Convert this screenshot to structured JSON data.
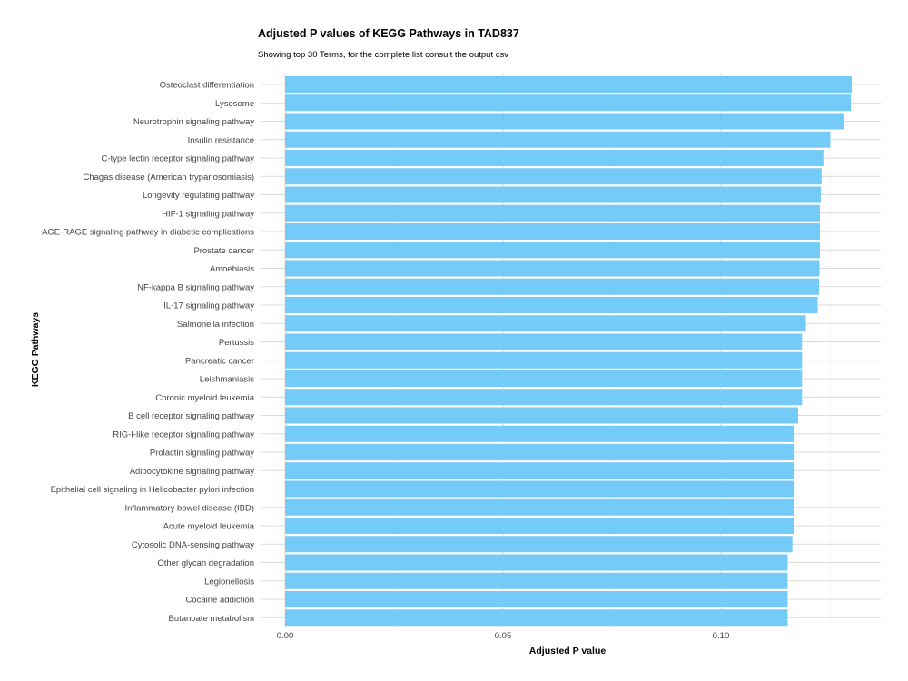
{
  "chart_data": {
    "type": "bar",
    "orientation": "horizontal",
    "title": "Adjusted P values of KEGG Pathways in TAD837",
    "subtitle": "Showing top 30 Terms, for the complete list consult the output csv",
    "xlabel": "Adjusted P value",
    "ylabel": "KEGG Pathways",
    "xlim": [
      0,
      0.137
    ],
    "xticks": [
      0.0,
      0.05,
      0.1
    ],
    "xtick_labels": [
      "0.00",
      "0.05",
      "0.10"
    ],
    "grid": true,
    "bar_color": "#74cbf8",
    "categories": [
      "Osteoclast differentiation",
      "Lysosome",
      "Neurotrophin signaling pathway",
      "Insulin resistance",
      "C-type lectin receptor signaling pathway",
      "Chagas disease (American trypanosomiasis)",
      "Longevity regulating pathway",
      "HIF-1 signaling pathway",
      "AGE-RAGE signaling pathway in diabetic complications",
      "Prostate cancer",
      "Amoebiasis",
      "NF-kappa B signaling pathway",
      "IL-17 signaling pathway",
      "Salmonella infection",
      "Pertussis",
      "Pancreatic cancer",
      "Leishmaniasis",
      "Chronic myeloid leukemia",
      "B cell receptor signaling pathway",
      "RIG-I-like receptor signaling pathway",
      "Prolactin signaling pathway",
      "Adipocytokine signaling pathway",
      "Epithelial cell signaling in Helicobacter pylori infection",
      "Inflammatory bowel disease (IBD)",
      "Acute myeloid leukemia",
      "Cytosolic DNA-sensing pathway",
      "Other glycan degradation",
      "Legionellosis",
      "Cocaine addiction",
      "Butanoate metabolism"
    ],
    "values": [
      0.13,
      0.1298,
      0.1281,
      0.1251,
      0.1235,
      0.1231,
      0.1229,
      0.1227,
      0.1227,
      0.1227,
      0.1226,
      0.1225,
      0.1222,
      0.1195,
      0.1186,
      0.1186,
      0.1186,
      0.1186,
      0.1177,
      0.1169,
      0.1169,
      0.1169,
      0.1169,
      0.1167,
      0.1167,
      0.1164,
      0.1153,
      0.1153,
      0.1153,
      0.1153
    ]
  }
}
